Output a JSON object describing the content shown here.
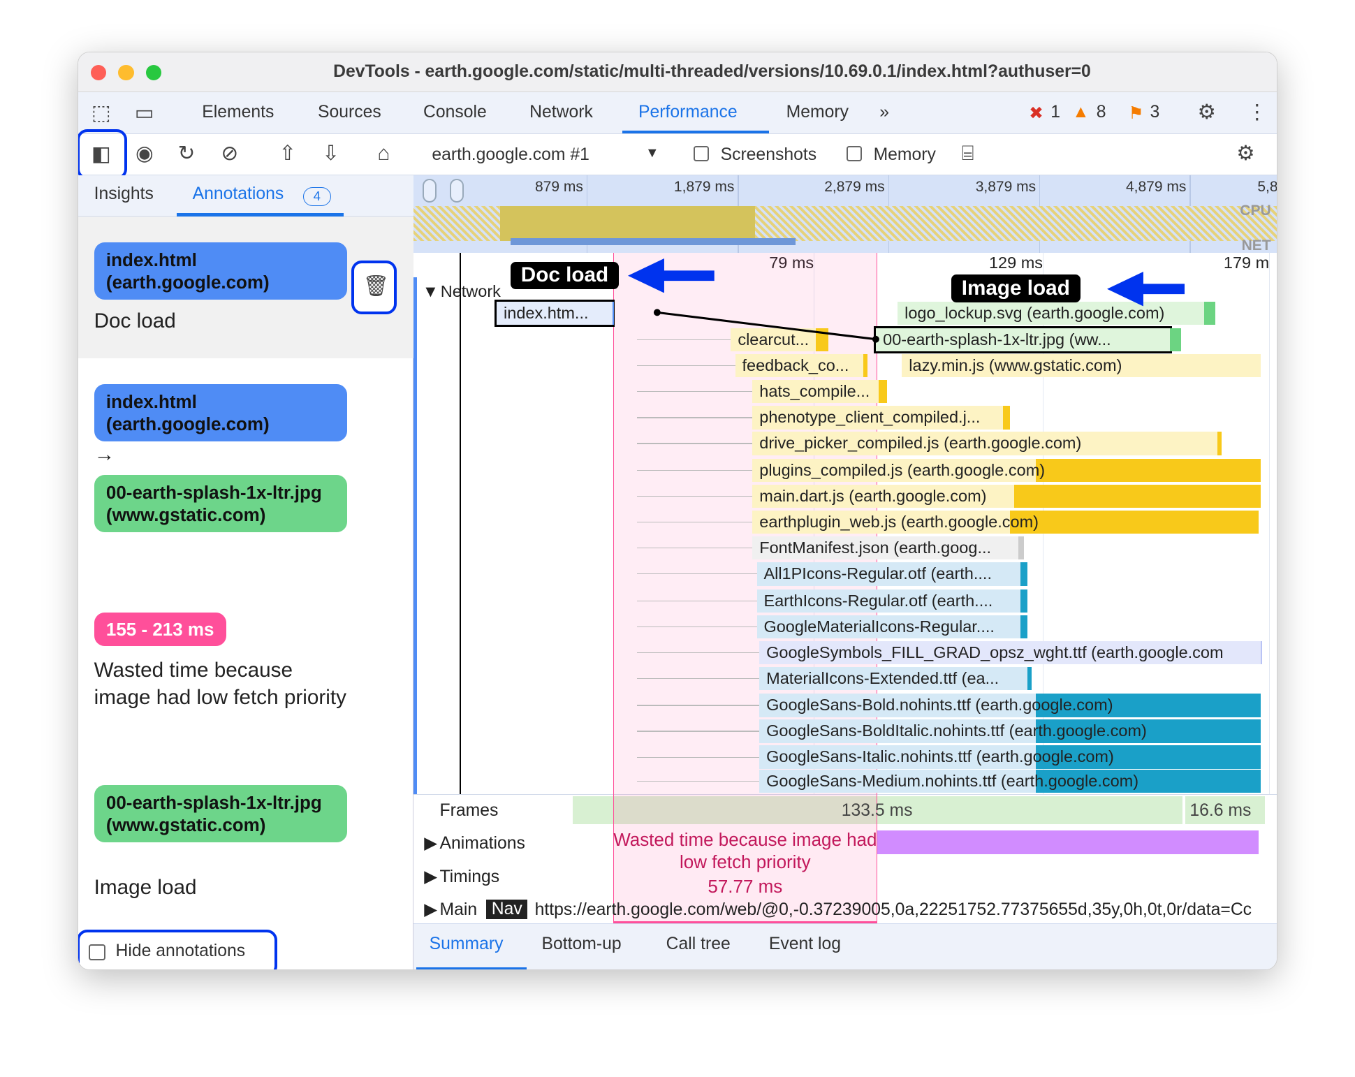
{
  "window": {
    "title": "DevTools - earth.google.com/static/multi-threaded/versions/10.69.0.1/index.html?authuser=0"
  },
  "tabs": [
    "Elements",
    "Sources",
    "Console",
    "Network",
    "Performance",
    "Memory"
  ],
  "active_tab": "Performance",
  "status": {
    "errors": "1",
    "warnings": "8",
    "issues": "3"
  },
  "toolbar": {
    "target": "earth.google.com #1",
    "screenshots": "Screenshots",
    "memory": "Memory"
  },
  "sidebar": {
    "insights": "Insights",
    "annotations": "Annotations",
    "annotations_count": "4",
    "hide_annotations": "Hide annotations",
    "items": [
      {
        "entry": "index.html (earth.google.com)",
        "label": "Doc load"
      },
      {
        "from": "index.html (earth.google.com)",
        "to": "00-earth-splash-1x-ltr.jpg (www.gstatic.com)"
      },
      {
        "range": "155 - 213 ms",
        "label": "Wasted time because image had low fetch priority"
      },
      {
        "entry": "00-earth-splash-1x-ltr.jpg (www.gstatic.com)",
        "label": "Image load"
      }
    ]
  },
  "overview": {
    "ticks": [
      "879 ms",
      "1,879 ms",
      "2,879 ms",
      "3,879 ms",
      "4,879 ms",
      "5,8"
    ],
    "cpu": "CPU",
    "net": "NET"
  },
  "timeline": {
    "ticks": [
      "79 ms",
      "129 ms",
      "179 m"
    ],
    "network_label": "Network",
    "requests": [
      "index.htm...",
      "clearcut...",
      "feedback_co...",
      "hats_compile...",
      "phenotype_client_compiled.j...",
      "drive_picker_compiled.js (earth.google.com)",
      "plugins_compiled.js (earth.google.com)",
      "main.dart.js (earth.google.com)",
      "earthplugin_web.js (earth.google.com)",
      "FontManifest.json (earth.goog...",
      "All1PIcons-Regular.otf (earth....",
      "EarthIcons-Regular.otf (earth....",
      "GoogleMaterialIcons-Regular....",
      "GoogleSymbols_FILL_GRAD_opsz_wght.ttf (earth.google.com",
      "MaterialIcons-Extended.ttf (ea...",
      "GoogleSans-Bold.nohints.ttf (earth.google.com)",
      "GoogleSans-BoldItalic.nohints.ttf (earth.google.com)",
      "GoogleSans-Italic.nohints.ttf (earth.google.com)",
      "GoogleSans-Medium.nohints.ttf (earth.google.com)",
      "logo_lockup.svg (earth.google.com)",
      "00-earth-splash-1x-ltr.jpg (ww...",
      "lazy.min.js (www.gstatic.com)"
    ],
    "callouts": {
      "doc": "Doc load",
      "image": "Image load"
    },
    "range_label": "Wasted time because image had low fetch priority",
    "range_duration": "57.77 ms"
  },
  "tracks": {
    "frames": "Frames",
    "frame1": "133.5 ms",
    "frame2": "16.6 ms",
    "animations": "Animations",
    "timings": "Timings",
    "main": "Main",
    "nav": "Nav",
    "main_url": "https://earth.google.com/web/@0,-0.37239005,0a,22251752.77375655d,35y,0h,0t,0r/data=Cc"
  },
  "bottom_tabs": [
    "Summary",
    "Bottom-up",
    "Call tree",
    "Event log"
  ],
  "colors": {
    "accent": "#1a73e8",
    "annotation_blue": "#4f8cf5",
    "annotation_green": "#6dd58a",
    "range_pink": "#ff4f9a",
    "highlight": "#0033ee"
  }
}
